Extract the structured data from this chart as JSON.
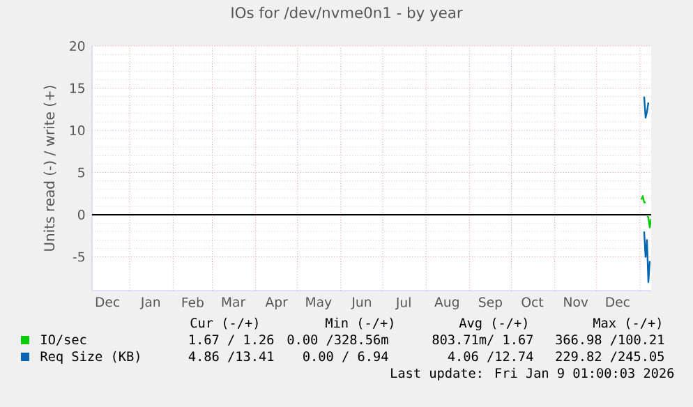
{
  "chart_data": {
    "type": "line",
    "title": "IOs for /dev/nvme0n1 - by year",
    "ylabel": "Units read (-) / write (+)",
    "xlim": [
      "2024-12-05",
      "2026-01-09"
    ],
    "ylim": [
      -9,
      20
    ],
    "xticks": [
      {
        "value": "2024-12-16",
        "label": "Dec"
      },
      {
        "value": "2025-01-01",
        "label": null
      },
      {
        "value": "2025-01-16",
        "label": "Jan"
      },
      {
        "value": "2025-02-01",
        "label": null
      },
      {
        "value": "2025-02-15",
        "label": "Feb"
      },
      {
        "value": "2025-03-01",
        "label": null
      },
      {
        "value": "2025-03-16",
        "label": "Mar"
      },
      {
        "value": "2025-04-01",
        "label": null
      },
      {
        "value": "2025-04-16",
        "label": "Apr"
      },
      {
        "value": "2025-05-01",
        "label": null
      },
      {
        "value": "2025-05-16",
        "label": "May"
      },
      {
        "value": "2025-06-01",
        "label": null
      },
      {
        "value": "2025-06-16",
        "label": "Jun"
      },
      {
        "value": "2025-07-01",
        "label": null
      },
      {
        "value": "2025-07-16",
        "label": "Jul"
      },
      {
        "value": "2025-08-01",
        "label": null
      },
      {
        "value": "2025-08-16",
        "label": "Aug"
      },
      {
        "value": "2025-09-01",
        "label": null
      },
      {
        "value": "2025-09-16",
        "label": "Sep"
      },
      {
        "value": "2025-10-01",
        "label": null
      },
      {
        "value": "2025-10-16",
        "label": "Oct"
      },
      {
        "value": "2025-11-01",
        "label": null
      },
      {
        "value": "2025-11-16",
        "label": "Nov"
      },
      {
        "value": "2025-12-01",
        "label": null
      },
      {
        "value": "2025-12-16",
        "label": "Dec"
      },
      {
        "value": "2026-01-01",
        "label": null
      }
    ],
    "yticks": [
      -5,
      0,
      5,
      10,
      15,
      20
    ],
    "grid": true,
    "legend": "bottom",
    "line_style": "solid",
    "ref_lines": [
      {
        "axis": "y",
        "value": 0,
        "color": "#000000"
      }
    ],
    "series": [
      {
        "name": "IO/sec",
        "color": "#00cc00",
        "x": [
          "2026-01-02",
          "2026-01-03",
          "2026-01-04",
          "2026-01-05"
        ],
        "values": [
          1.8,
          2.2,
          1.5,
          1.4
        ]
      },
      {
        "color": "#00c800",
        "x": [
          "2026-01-06",
          "2026-01-07",
          "2026-01-08",
          "2026-01-09"
        ],
        "values": [
          -0.2,
          -0.3,
          -1.5,
          -0.5
        ]
      },
      {
        "name": "Req Size (KB)",
        "color": "#0066b3",
        "x": [
          "2026-01-04",
          "2026-01-05",
          "2026-01-06",
          "2026-01-07"
        ],
        "values": [
          14,
          11.5,
          12.2,
          13.3
        ]
      },
      {
        "color": "#0066b3",
        "x": [
          "2026-01-04",
          "2026-01-05",
          "2026-01-06",
          "2026-01-07",
          "2026-01-08"
        ],
        "values": [
          -2,
          -5,
          -3,
          -8,
          -5.5
        ]
      }
    ],
    "annotations": [
      "Cur (-/+)",
      "Min (-/+)",
      "Avg (-/+)",
      "Max (-/+)",
      "1.67 / 1.26",
      "0.00 /328.56m",
      "803.71m/ 1.67",
      "366.98 /100.21",
      "4.86 /13.41",
      "0.00 / 6.94",
      "4.06 /12.74",
      "229.82 /245.05",
      "Last update: Fri Jan 9 01:00:03 2026"
    ]
  }
}
